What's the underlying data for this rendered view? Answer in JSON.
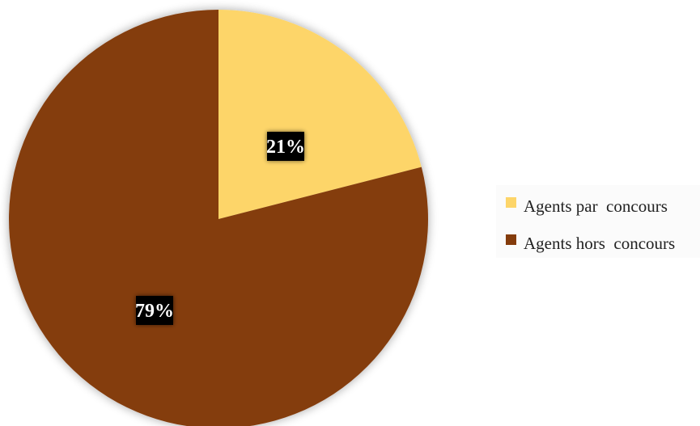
{
  "chart_data": {
    "type": "pie",
    "slices": [
      {
        "label": "Agents par  concours",
        "value": 21,
        "data_label": "21%",
        "color": "#FDD569"
      },
      {
        "label": "Agents hors  concours",
        "value": 79,
        "data_label": "79%",
        "color": "#843C0C"
      }
    ],
    "legend_position": "right",
    "data_label_style": {
      "background": "#000000",
      "text_color": "#ffffff"
    }
  },
  "legend": {
    "items": [
      {
        "label": "Agents par  concours",
        "color": "#FDD569"
      },
      {
        "label": "Agents hors  concours",
        "color": "#843C0C"
      }
    ]
  }
}
